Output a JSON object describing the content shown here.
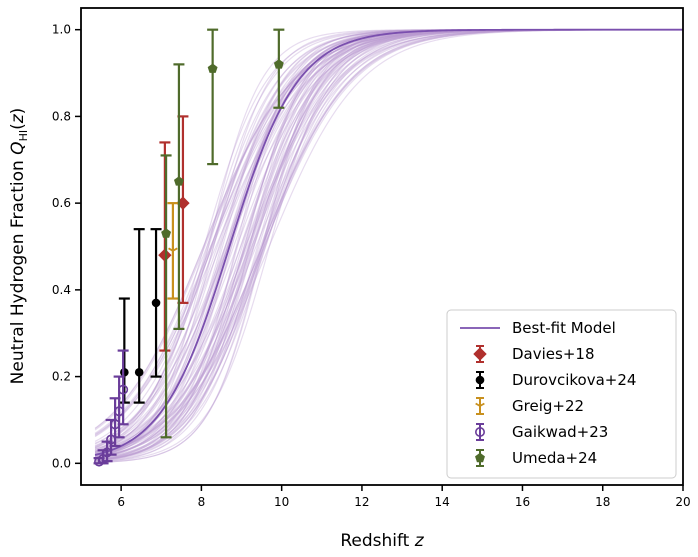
{
  "chart_data": {
    "type": "scatter",
    "xlabel": "Redshift z",
    "ylabel": "Neutral Hydrogen Fraction Q_HI(z)",
    "xlim": [
      5,
      20
    ],
    "ylim": [
      -0.05,
      1.05
    ],
    "xticks": [
      6,
      8,
      10,
      12,
      14,
      16,
      18,
      20
    ],
    "yticks": [
      0.0,
      0.2,
      0.4,
      0.6,
      0.8,
      1.0
    ],
    "xtick_labels": [
      "6",
      "8",
      "10",
      "12",
      "14",
      "16",
      "18",
      "20"
    ],
    "ytick_labels": [
      "0.0",
      "0.2",
      "0.4",
      "0.6",
      "0.8",
      "1.0"
    ],
    "best_fit": {
      "name": "Best-fit Model",
      "color": "#7a4fae",
      "z_mid": 8.7,
      "width": 0.85
    },
    "posterior_band": {
      "color": "#b99ad1",
      "n_samples": 80,
      "z_mid_range": [
        8.05,
        9.7
      ],
      "width_range": [
        0.65,
        1.15
      ]
    },
    "series": [
      {
        "name": "Davies+18",
        "color": "#b0302d",
        "marker": "diamond",
        "points": [
          {
            "x": 7.09,
            "y": 0.48,
            "ylo": 0.26,
            "yhi": 0.74
          },
          {
            "x": 7.54,
            "y": 0.6,
            "ylo": 0.37,
            "yhi": 0.8
          }
        ]
      },
      {
        "name": "Durovcikova+24",
        "color": "#000000",
        "marker": "circle",
        "points": [
          {
            "x": 6.08,
            "y": 0.21,
            "ylo": 0.14,
            "yhi": 0.38
          },
          {
            "x": 6.45,
            "y": 0.21,
            "ylo": 0.14,
            "yhi": 0.54
          },
          {
            "x": 6.87,
            "y": 0.37,
            "ylo": 0.2,
            "yhi": 0.54
          }
        ]
      },
      {
        "name": "Greig+22",
        "color": "#c8901e",
        "marker": "tri_down",
        "points": [
          {
            "x": 7.29,
            "y": 0.49,
            "ylo": 0.38,
            "yhi": 0.6
          }
        ]
      },
      {
        "name": "Gaikwad+23",
        "color": "#6a3d9a",
        "marker": "open_circle",
        "points": [
          {
            "x": 5.45,
            "y": 0.004,
            "ylo": 0.0,
            "yhi": 0.012
          },
          {
            "x": 5.55,
            "y": 0.01,
            "ylo": 0.0,
            "yhi": 0.03
          },
          {
            "x": 5.65,
            "y": 0.025,
            "ylo": 0.005,
            "yhi": 0.05
          },
          {
            "x": 5.75,
            "y": 0.055,
            "ylo": 0.02,
            "yhi": 0.1
          },
          {
            "x": 5.85,
            "y": 0.09,
            "ylo": 0.04,
            "yhi": 0.15
          },
          {
            "x": 5.95,
            "y": 0.12,
            "ylo": 0.06,
            "yhi": 0.2
          },
          {
            "x": 6.05,
            "y": 0.17,
            "ylo": 0.09,
            "yhi": 0.26
          }
        ]
      },
      {
        "name": "Umeda+24",
        "color": "#4f6b2b",
        "marker": "pentagon",
        "points": [
          {
            "x": 7.12,
            "y": 0.53,
            "ylo": 0.06,
            "yhi": 0.71
          },
          {
            "x": 7.44,
            "y": 0.65,
            "ylo": 0.31,
            "yhi": 0.92
          },
          {
            "x": 8.28,
            "y": 0.91,
            "ylo": 0.69,
            "yhi": 1.0
          },
          {
            "x": 9.93,
            "y": 0.92,
            "ylo": 0.82,
            "yhi": 1.0
          }
        ]
      }
    ]
  }
}
